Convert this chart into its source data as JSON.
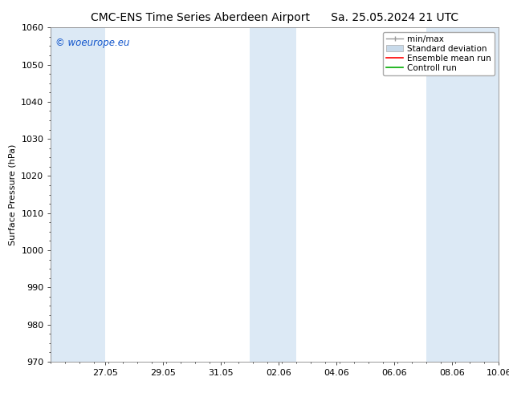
{
  "title_left": "CMC-ENS Time Series Aberdeen Airport",
  "title_right": "Sa. 25.05.2024 21 UTC",
  "ylabel": "Surface Pressure (hPa)",
  "ylim": [
    970,
    1060
  ],
  "yticks": [
    970,
    980,
    990,
    1000,
    1010,
    1020,
    1030,
    1040,
    1050,
    1060
  ],
  "xlim": [
    0,
    15.5
  ],
  "xtick_labels": [
    "27.05",
    "29.05",
    "31.05",
    "02.06",
    "04.06",
    "06.06",
    "08.06",
    "10.06"
  ],
  "xtick_positions": [
    1.875,
    3.875,
    5.875,
    7.875,
    9.875,
    11.875,
    13.875,
    15.5
  ],
  "shaded_bands": [
    {
      "start": 0,
      "end": 1.875
    },
    {
      "start": 6.875,
      "end": 8.5
    },
    {
      "start": 13.0,
      "end": 15.5
    }
  ],
  "band_color": "#dce9f5",
  "background_color": "#ffffff",
  "plot_bg_color": "#ffffff",
  "legend_labels": [
    "min/max",
    "Standard deviation",
    "Ensemble mean run",
    "Controll run"
  ],
  "legend_colors": [
    "#aaaaaa",
    "#c8daea",
    "#ff0000",
    "#00aa00"
  ],
  "watermark": "© woeurope.eu",
  "watermark_color": "#1155cc",
  "title_fontsize": 10,
  "tick_fontsize": 8,
  "ylabel_fontsize": 8,
  "legend_fontsize": 7.5
}
